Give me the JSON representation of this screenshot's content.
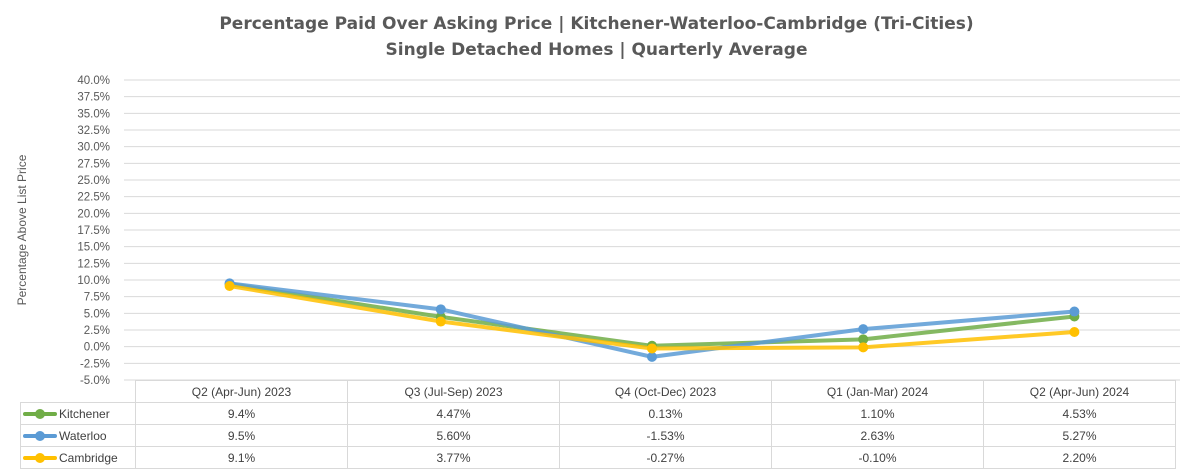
{
  "chart_data": {
    "type": "line",
    "title": "Percentage Paid Over Asking Price | Kitchener-Waterloo-Cambridge (Tri-Cities)",
    "subtitle": "Single Detached Homes | Quarterly Average",
    "ylabel": "Percentage Above List Price",
    "xlabel": "",
    "ylim": [
      -5.0,
      40.0
    ],
    "y_ticks": [
      "40.0%",
      "37.5%",
      "35.0%",
      "32.5%",
      "30.0%",
      "27.5%",
      "25.0%",
      "22.5%",
      "20.0%",
      "17.5%",
      "15.0%",
      "12.5%",
      "10.0%",
      "7.5%",
      "5.0%",
      "2.5%",
      "0.0%",
      "-2.5%",
      "-5.0%"
    ],
    "categories": [
      "Q2 (Apr-Jun) 2023",
      "Q3 (Jul-Sep) 2023",
      "Q4 (Oct-Dec) 2023",
      "Q1 (Jan-Mar) 2024",
      "Q2 (Apr-Jun) 2024"
    ],
    "grid": true,
    "legend": "data-table",
    "series": [
      {
        "name": "Kitchener",
        "color": "#70ad47",
        "values": [
          9.4,
          4.47,
          0.13,
          1.1,
          4.53
        ],
        "labels": [
          "9.4%",
          "4.47%",
          "0.13%",
          "1.10%",
          "4.53%"
        ]
      },
      {
        "name": "Waterloo",
        "color": "#5b9bd5",
        "values": [
          9.5,
          5.6,
          -1.53,
          2.63,
          5.27
        ],
        "labels": [
          "9.5%",
          "5.60%",
          "-1.53%",
          "2.63%",
          "5.27%"
        ]
      },
      {
        "name": "Cambridge",
        "color": "#ffc000",
        "values": [
          9.1,
          3.77,
          -0.27,
          -0.1,
          2.2
        ],
        "labels": [
          "9.1%",
          "3.77%",
          "-0.27%",
          "-0.10%",
          "2.20%"
        ]
      }
    ]
  }
}
